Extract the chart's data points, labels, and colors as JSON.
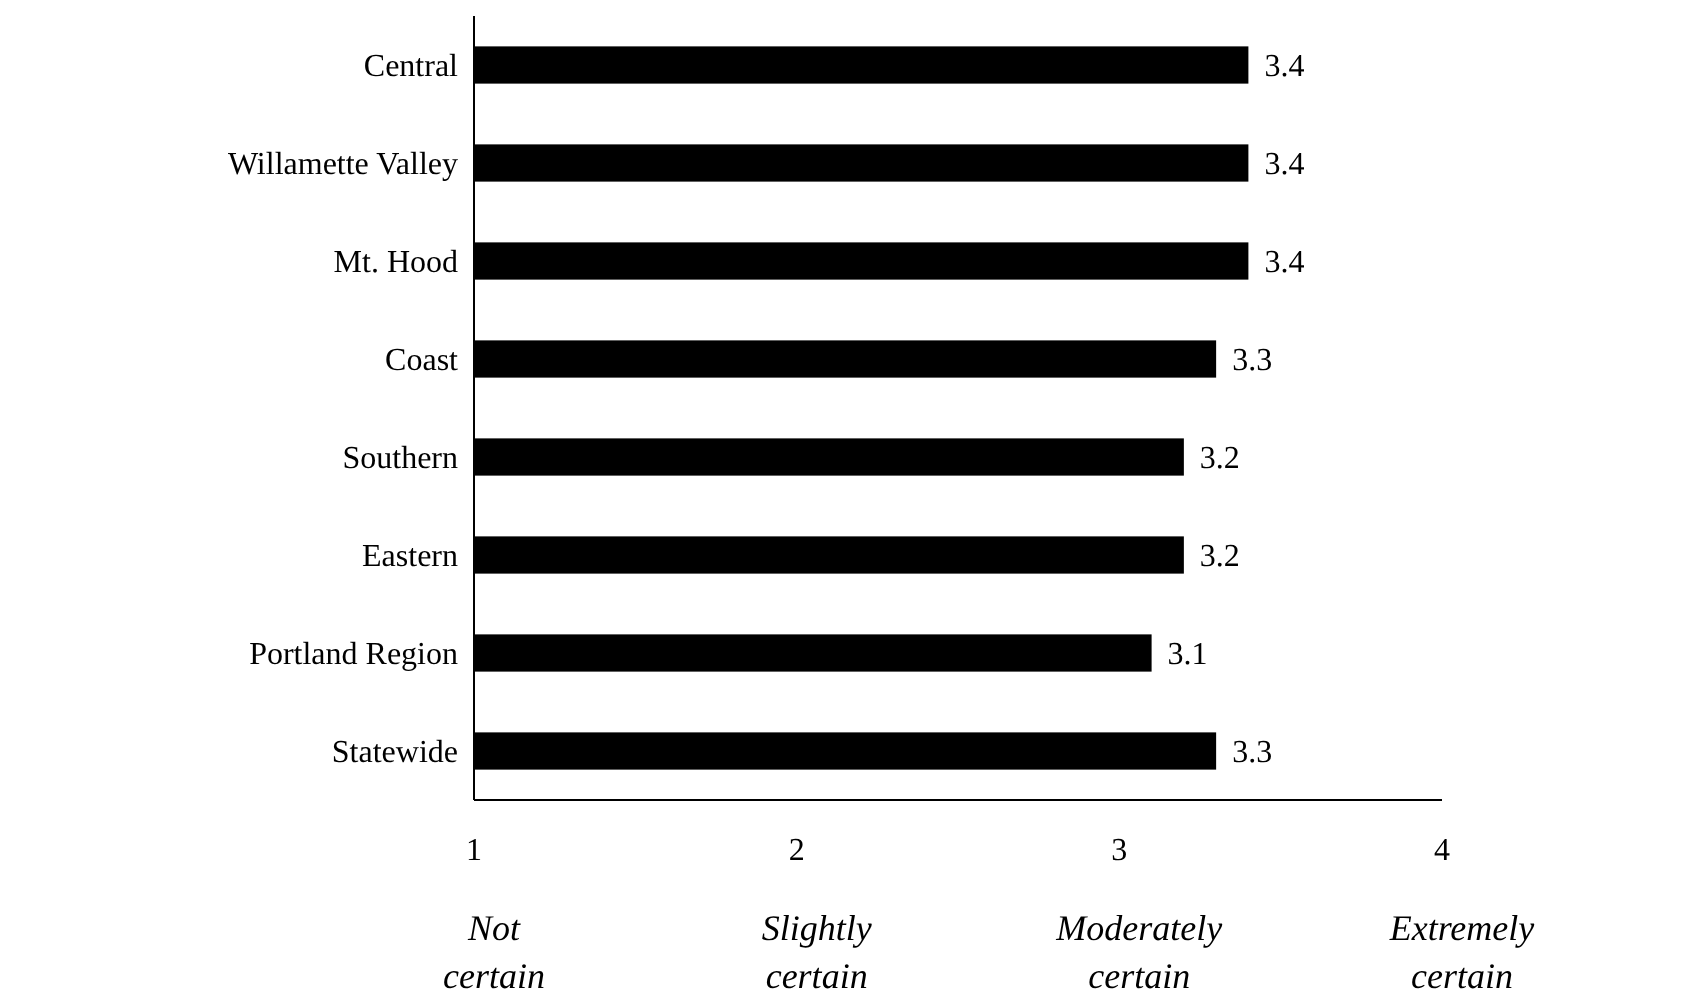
{
  "chart_data": {
    "type": "bar",
    "orientation": "horizontal",
    "categories": [
      "Central",
      "Willamette Valley",
      "Mt. Hood",
      "Coast",
      "Southern",
      "Eastern",
      "Portland Region",
      "Statewide"
    ],
    "values": [
      3.4,
      3.4,
      3.4,
      3.3,
      3.2,
      3.2,
      3.1,
      3.3
    ],
    "color": "#000000",
    "xlim": [
      1,
      4
    ],
    "xticks": [
      1,
      2,
      3,
      4
    ],
    "data_labels": true,
    "grid": false,
    "annotations": [
      "Not certain",
      "Slightly certain",
      "Moderately certain",
      "Extremely certain"
    ]
  }
}
